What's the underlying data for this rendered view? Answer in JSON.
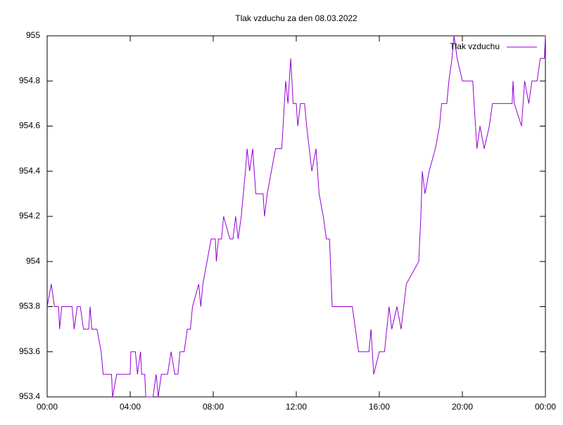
{
  "chart_data": {
    "type": "line",
    "title": "Tlak vzduchu za den 08.03.2022",
    "x": [
      0,
      0.2,
      0.35,
      0.55,
      0.6,
      0.7,
      1.2,
      1.3,
      1.45,
      1.6,
      1.75,
      2.0,
      2.07,
      2.15,
      2.4,
      2.6,
      2.7,
      3.1,
      3.15,
      3.35,
      4.0,
      4.03,
      4.25,
      4.35,
      4.5,
      4.55,
      4.7,
      4.75,
      5.1,
      5.25,
      5.35,
      5.5,
      5.8,
      5.97,
      6.15,
      6.3,
      6.4,
      6.6,
      6.75,
      6.9,
      7.0,
      7.3,
      7.4,
      7.5,
      7.7,
      7.9,
      8.1,
      8.15,
      8.25,
      8.4,
      8.5,
      8.8,
      8.95,
      9.08,
      9.2,
      9.35,
      9.55,
      9.63,
      9.75,
      9.9,
      10.05,
      10.4,
      10.47,
      10.6,
      10.8,
      11.0,
      11.3,
      11.49,
      11.6,
      11.73,
      11.85,
      12.0,
      12.07,
      12.2,
      12.4,
      12.5,
      12.75,
      12.95,
      13.1,
      13.3,
      13.45,
      13.6,
      13.73,
      14.7,
      14.85,
      15.0,
      15.5,
      15.6,
      15.73,
      16.0,
      16.25,
      16.47,
      16.6,
      16.85,
      17.05,
      17.3,
      17.9,
      18.0,
      18.07,
      18.2,
      18.4,
      18.7,
      18.9,
      19.0,
      19.25,
      19.35,
      19.5,
      19.6,
      19.75,
      20.0,
      20.5,
      20.7,
      20.85,
      21.05,
      21.3,
      21.45,
      22.4,
      22.44,
      22.5,
      22.85,
      23.0,
      23.2,
      23.35,
      23.6,
      23.75,
      23.95,
      24.0
    ],
    "series": [
      {
        "name": "Tlak vzduchu",
        "color": "#9400d3",
        "values": [
          953.8,
          953.9,
          953.8,
          953.8,
          953.7,
          953.8,
          953.8,
          953.7,
          953.8,
          953.8,
          953.7,
          953.7,
          953.8,
          953.7,
          953.7,
          953.6,
          953.5,
          953.5,
          953.4,
          953.5,
          953.5,
          953.6,
          953.6,
          953.5,
          953.6,
          953.5,
          953.5,
          953.4,
          953.4,
          953.5,
          953.4,
          953.5,
          953.5,
          953.6,
          953.5,
          953.5,
          953.6,
          953.6,
          953.7,
          953.7,
          953.8,
          953.9,
          953.8,
          953.9,
          954.0,
          954.1,
          954.1,
          954.0,
          954.1,
          954.1,
          954.2,
          954.1,
          954.1,
          954.2,
          954.1,
          954.2,
          954.4,
          954.5,
          954.4,
          954.5,
          954.3,
          954.3,
          954.2,
          954.3,
          954.4,
          954.5,
          954.5,
          954.8,
          954.7,
          954.9,
          954.7,
          954.7,
          954.6,
          954.7,
          954.7,
          954.6,
          954.4,
          954.5,
          954.3,
          954.2,
          954.1,
          954.1,
          953.8,
          953.8,
          953.7,
          953.6,
          953.6,
          953.7,
          953.5,
          953.6,
          953.6,
          953.8,
          953.7,
          953.8,
          953.7,
          953.9,
          954.0,
          954.2,
          954.4,
          954.3,
          954.4,
          954.5,
          954.6,
          954.7,
          954.7,
          954.8,
          954.9,
          955.0,
          954.9,
          954.8,
          954.8,
          954.5,
          954.6,
          954.5,
          954.6,
          954.7,
          954.7,
          954.8,
          954.7,
          954.6,
          954.8,
          954.7,
          954.8,
          954.8,
          954.9,
          954.9,
          955.0
        ]
      }
    ],
    "xlim": [
      0,
      24
    ],
    "xticks": [
      {
        "value": 0,
        "label": "00:00"
      },
      {
        "value": 4,
        "label": "04:00"
      },
      {
        "value": 8,
        "label": "08:00"
      },
      {
        "value": 12,
        "label": "12:00"
      },
      {
        "value": 16,
        "label": "16:00"
      },
      {
        "value": 20,
        "label": "20:00"
      },
      {
        "value": 24,
        "label": "00:00"
      }
    ],
    "ylim": [
      953.4,
      955
    ],
    "yticks": [
      953.4,
      953.6,
      953.8,
      954,
      954.2,
      954.4,
      954.6,
      954.8,
      955
    ],
    "legend": "top-right"
  }
}
